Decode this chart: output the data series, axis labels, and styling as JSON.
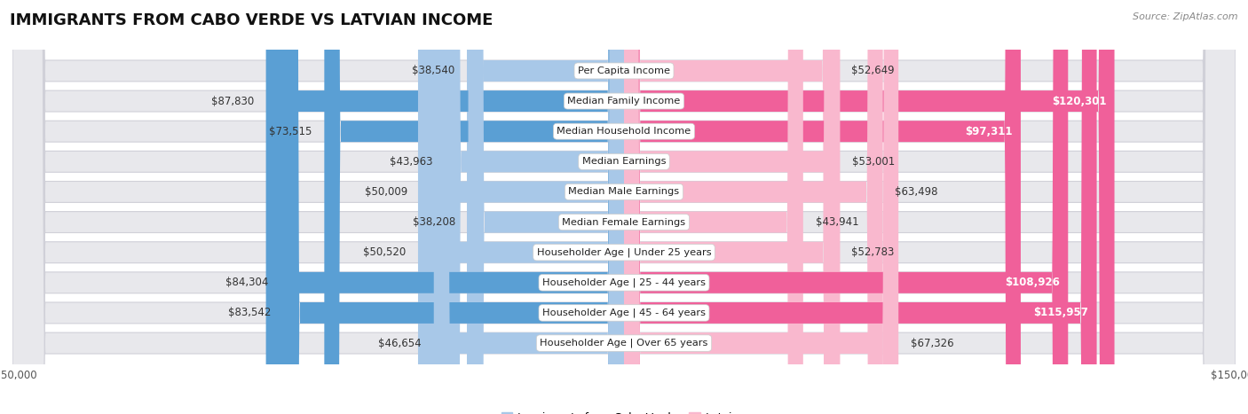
{
  "title": "IMMIGRANTS FROM CABO VERDE VS LATVIAN INCOME",
  "source": "Source: ZipAtlas.com",
  "categories": [
    "Per Capita Income",
    "Median Family Income",
    "Median Household Income",
    "Median Earnings",
    "Median Male Earnings",
    "Median Female Earnings",
    "Householder Age | Under 25 years",
    "Householder Age | 25 - 44 years",
    "Householder Age | 45 - 64 years",
    "Householder Age | Over 65 years"
  ],
  "cabo_verde_values": [
    38540,
    87830,
    73515,
    43963,
    50009,
    38208,
    50520,
    84304,
    83542,
    46654
  ],
  "latvian_values": [
    52649,
    120301,
    97311,
    53001,
    63498,
    43941,
    52783,
    108926,
    115957,
    67326
  ],
  "cabo_verde_labels": [
    "$38,540",
    "$87,830",
    "$73,515",
    "$43,963",
    "$50,009",
    "$38,208",
    "$50,520",
    "$84,304",
    "$83,542",
    "$46,654"
  ],
  "latvian_labels": [
    "$52,649",
    "$120,301",
    "$97,311",
    "$53,001",
    "$63,498",
    "$43,941",
    "$52,783",
    "$108,926",
    "$115,957",
    "$67,326"
  ],
  "cabo_verde_color_light": "#a8c8e8",
  "cabo_verde_color_dark": "#5a9fd4",
  "latvian_color_light": "#f9b8ce",
  "latvian_color_dark": "#f0609a",
  "cabo_thresh": 70000,
  "latvian_thresh": 90000,
  "max_value": 150000,
  "row_bg_color": "#e8e8ec",
  "row_border_color": "#d0d0d8",
  "title_fontsize": 13,
  "label_fontsize": 8.5,
  "category_fontsize": 8.2,
  "axis_label_fontsize": 8.5,
  "legend_fontsize": 9
}
